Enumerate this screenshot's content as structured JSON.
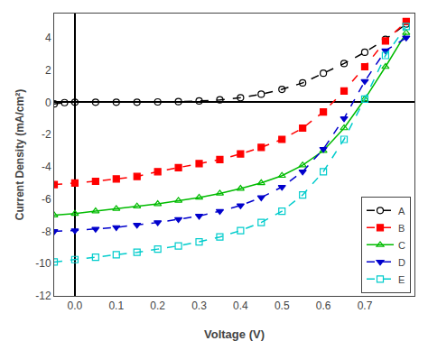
{
  "chart_data": {
    "type": "line",
    "xlabel": "Voltage (V)",
    "ylabel": "Current Density (mA/cm²)",
    "xlim": [
      -0.05,
      0.82
    ],
    "ylim": [
      -12,
      5.5
    ],
    "xticks": [
      {
        "value": 0,
        "label": "0.0"
      },
      0.1,
      0.2,
      0.3,
      0.4,
      0.5,
      0.6,
      0.7
    ],
    "yticks": [
      -12,
      -10,
      -8,
      -6,
      -4,
      -2,
      0,
      2,
      4
    ],
    "grid": false,
    "legend": "lower right",
    "series": [
      {
        "name": "A",
        "color": "#000000",
        "marker": "circle-open",
        "line_style": "dashed",
        "x": [
          -0.05,
          -0.025,
          0.0,
          0.05,
          0.1,
          0.15,
          0.2,
          0.25,
          0.3,
          0.35,
          0.4,
          0.45,
          0.5,
          0.55,
          0.6,
          0.65,
          0.7,
          0.75,
          0.8
        ],
        "values": [
          -0.1,
          -0.02,
          0.0,
          0.0,
          0.0,
          0.0,
          0.02,
          0.04,
          0.08,
          0.15,
          0.28,
          0.5,
          0.8,
          1.2,
          1.8,
          2.4,
          3.1,
          3.9,
          4.85
        ]
      },
      {
        "name": "B",
        "color": "#ff0000",
        "marker": "square",
        "line_style": "dashed",
        "x": [
          -0.05,
          0.0,
          0.05,
          0.1,
          0.15,
          0.2,
          0.25,
          0.3,
          0.35,
          0.4,
          0.45,
          0.5,
          0.55,
          0.6,
          0.65,
          0.7,
          0.75,
          0.8
        ],
        "values": [
          -5.1,
          -5.0,
          -4.9,
          -4.75,
          -4.6,
          -4.3,
          -4.05,
          -3.8,
          -3.55,
          -3.2,
          -2.8,
          -2.3,
          -1.6,
          -0.6,
          0.7,
          2.2,
          3.8,
          5.0
        ]
      },
      {
        "name": "C",
        "color": "#00bb00",
        "marker": "triangle-up-open",
        "line_style": "solid",
        "x": [
          -0.05,
          0.0,
          0.05,
          0.1,
          0.15,
          0.2,
          0.25,
          0.3,
          0.35,
          0.4,
          0.45,
          0.5,
          0.55,
          0.6,
          0.65,
          0.7,
          0.75,
          0.8
        ],
        "values": [
          -7.0,
          -6.9,
          -6.75,
          -6.6,
          -6.45,
          -6.3,
          -6.1,
          -5.9,
          -5.65,
          -5.35,
          -5.0,
          -4.55,
          -3.9,
          -3.0,
          -1.6,
          0.2,
          2.2,
          4.3
        ]
      },
      {
        "name": "D",
        "color": "#0000cc",
        "marker": "triangle-down",
        "line_style": "dashed",
        "x": [
          -0.05,
          0.0,
          0.05,
          0.1,
          0.15,
          0.2,
          0.25,
          0.3,
          0.35,
          0.4,
          0.45,
          0.5,
          0.55,
          0.6,
          0.65,
          0.7,
          0.75,
          0.8
        ],
        "values": [
          -8.0,
          -7.95,
          -7.85,
          -7.75,
          -7.6,
          -7.45,
          -7.25,
          -7.05,
          -6.75,
          -6.4,
          -5.9,
          -5.25,
          -4.3,
          -2.9,
          -1.0,
          1.3,
          3.2,
          4.0
        ]
      },
      {
        "name": "E",
        "color": "#00cccc",
        "marker": "square-open",
        "line_style": "dashed",
        "x": [
          -0.05,
          0.0,
          0.05,
          0.1,
          0.15,
          0.2,
          0.25,
          0.3,
          0.35,
          0.4,
          0.45,
          0.5,
          0.55,
          0.6,
          0.65,
          0.7,
          0.75,
          0.8
        ],
        "values": [
          -9.9,
          -9.75,
          -9.6,
          -9.45,
          -9.3,
          -9.1,
          -8.9,
          -8.65,
          -8.35,
          -7.95,
          -7.45,
          -6.75,
          -5.75,
          -4.3,
          -2.3,
          0.2,
          2.9,
          4.7
        ]
      }
    ]
  }
}
